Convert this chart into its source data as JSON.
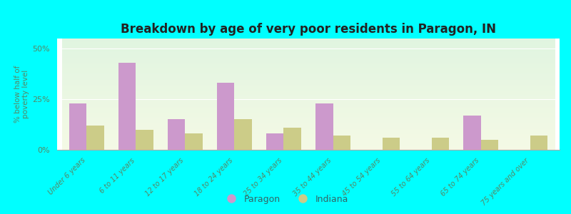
{
  "categories": [
    "Under 6 years",
    "6 to 11 years",
    "12 to 17 years",
    "18 to 24 years",
    "25 to 34 years",
    "35 to 44 years",
    "45 to 54 years",
    "55 to 64 years",
    "65 to 74 years",
    "75 years and over"
  ],
  "paragon_values": [
    23,
    43,
    15,
    33,
    8,
    23,
    0,
    0,
    17,
    0
  ],
  "indiana_values": [
    12,
    10,
    8,
    15,
    11,
    7,
    6,
    6,
    5,
    7
  ],
  "paragon_color": "#cc99cc",
  "indiana_color": "#cccc88",
  "title": "Breakdown by age of very poor residents in Paragon, IN",
  "ylabel": "% below half of\npoverty level",
  "ylim": [
    0,
    55
  ],
  "yticks": [
    0,
    25,
    50
  ],
  "ytick_labels": [
    "0%",
    "25%",
    "50%"
  ],
  "background_outer": "#00ffff",
  "tick_label_color": "#558866",
  "title_color": "#222222",
  "bar_width": 0.35,
  "legend_label_color": "#336666"
}
